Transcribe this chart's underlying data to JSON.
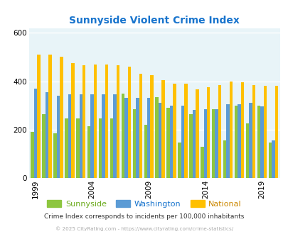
{
  "title": "Sunnyside Violent Crime Index",
  "title_color": "#1874cd",
  "years": [
    1999,
    2000,
    2001,
    2002,
    2003,
    2004,
    2005,
    2006,
    2007,
    2008,
    2009,
    2010,
    2011,
    2012,
    2013,
    2014,
    2015,
    2016,
    2017,
    2018,
    2019,
    2020
  ],
  "sunnyside": [
    190,
    265,
    185,
    245,
    245,
    215,
    245,
    245,
    350,
    285,
    220,
    335,
    290,
    145,
    265,
    130,
    285,
    155,
    300,
    225,
    300,
    145
  ],
  "washington": [
    370,
    355,
    340,
    345,
    345,
    345,
    345,
    345,
    330,
    330,
    330,
    310,
    300,
    300,
    280,
    285,
    285,
    305,
    305,
    310,
    295,
    155
  ],
  "national": [
    510,
    510,
    500,
    475,
    465,
    470,
    470,
    465,
    460,
    430,
    425,
    405,
    390,
    390,
    365,
    375,
    385,
    400,
    395,
    385,
    380,
    380
  ],
  "sunnyside_color": "#8dc63f",
  "washington_color": "#5b9bd5",
  "national_color": "#ffc000",
  "bg_color": "#e0eef5",
  "plot_bg_color": "#e8f4f8",
  "ylim": [
    0,
    620
  ],
  "yticks": [
    0,
    200,
    400,
    600
  ],
  "xlabel_years": [
    1999,
    2004,
    2009,
    2014,
    2019
  ],
  "footnote1": "Crime Index corresponds to incidents per 100,000 inhabitants",
  "footnote2": "© 2025 CityRating.com - https://www.cityrating.com/crime-statistics/",
  "legend_labels": [
    "Sunnyside",
    "Washington",
    "National"
  ],
  "legend_label_colors": [
    "#6aaa1a",
    "#1874cd",
    "#cc8800"
  ],
  "bar_width": 0.28,
  "figsize": [
    4.06,
    3.3
  ],
  "dpi": 100
}
